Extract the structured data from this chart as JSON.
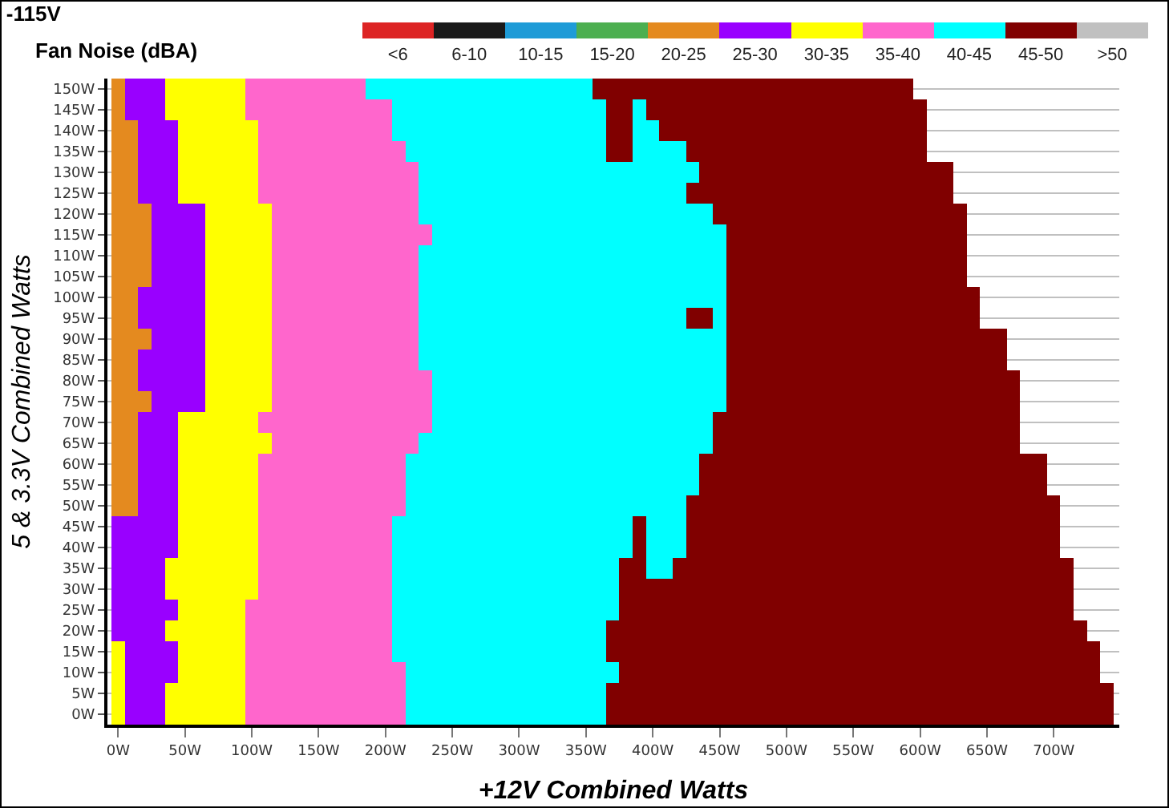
{
  "chart_data": {
    "type": "heatmap",
    "title": "-115V",
    "subtitle": "Fan Noise (dBA)",
    "xlabel": "+12V Combined Watts",
    "ylabel": "5 & 3.3V Combined Watts",
    "x": [
      0,
      10,
      20,
      30,
      40,
      50,
      60,
      70,
      80,
      90,
      100,
      110,
      120,
      130,
      140,
      150,
      160,
      170,
      180,
      190,
      200,
      210,
      220,
      230,
      240,
      250,
      260,
      270,
      280,
      290,
      300,
      310,
      320,
      330,
      340,
      350,
      360,
      370,
      380,
      390,
      400,
      410,
      420,
      430,
      440,
      450,
      460,
      470,
      480,
      490,
      500,
      510,
      520,
      530,
      540,
      550,
      560,
      570,
      580,
      590,
      600,
      610,
      620,
      630,
      640,
      650,
      660,
      670,
      680,
      690,
      700,
      710,
      720,
      730,
      740
    ],
    "y_categories": [
      "150W",
      "145W",
      "140W",
      "135W",
      "130W",
      "125W",
      "120W",
      "115W",
      "110W",
      "105W",
      "100W",
      "95W",
      "90W",
      "85W",
      "80W",
      "75W",
      "70W",
      "65W",
      "60W",
      "55W",
      "50W",
      "45W",
      "40W",
      "35W",
      "30W",
      "25W",
      "20W",
      "15W",
      "10W",
      "5W",
      "0W"
    ],
    "cells": [
      [
        22.5,
        27.5,
        27.5,
        27.5,
        32.5,
        32.5,
        32.5,
        32.5,
        32.5,
        32.5,
        37.5,
        37.5,
        37.5,
        37.5,
        37.5,
        37.5,
        37.5,
        37.5,
        37.5,
        42.5,
        42.5,
        42.5,
        42.5,
        42.5,
        42.5,
        42.5,
        42.5,
        42.5,
        42.5,
        42.5,
        42.5,
        42.5,
        42.5,
        42.5,
        42.5,
        42.5,
        47.5,
        47.5,
        47.5,
        47.5,
        47.5,
        47.5,
        47.5,
        47.5,
        47.5,
        47.5,
        47.5,
        47.5,
        47.5,
        47.5,
        47.5,
        47.5,
        47.5,
        47.5,
        47.5,
        47.5,
        47.5,
        47.5,
        47.5,
        47.5,
        null,
        null,
        null,
        null,
        null,
        null,
        null,
        null,
        null,
        null,
        null,
        null,
        null,
        null,
        null
      ],
      [
        22.5,
        27.5,
        27.5,
        27.5,
        32.5,
        32.5,
        32.5,
        32.5,
        32.5,
        32.5,
        37.5,
        37.5,
        37.5,
        37.5,
        37.5,
        37.5,
        37.5,
        37.5,
        37.5,
        37.5,
        37.5,
        42.5,
        42.5,
        42.5,
        42.5,
        42.5,
        42.5,
        42.5,
        42.5,
        42.5,
        42.5,
        42.5,
        42.5,
        42.5,
        42.5,
        42.5,
        42.5,
        47.5,
        47.5,
        42.5,
        47.5,
        47.5,
        47.5,
        47.5,
        47.5,
        47.5,
        47.5,
        47.5,
        47.5,
        47.5,
        47.5,
        47.5,
        47.5,
        47.5,
        47.5,
        47.5,
        47.5,
        47.5,
        47.5,
        47.5,
        47.5,
        null,
        null,
        null,
        null,
        null,
        null,
        null,
        null,
        null,
        null,
        null,
        null,
        null,
        null
      ],
      [
        22.5,
        22.5,
        27.5,
        27.5,
        27.5,
        32.5,
        32.5,
        32.5,
        32.5,
        32.5,
        32.5,
        37.5,
        37.5,
        37.5,
        37.5,
        37.5,
        37.5,
        37.5,
        37.5,
        37.5,
        37.5,
        42.5,
        42.5,
        42.5,
        42.5,
        42.5,
        42.5,
        42.5,
        42.5,
        42.5,
        42.5,
        42.5,
        42.5,
        42.5,
        42.5,
        42.5,
        42.5,
        47.5,
        47.5,
        42.5,
        42.5,
        47.5,
        47.5,
        47.5,
        47.5,
        47.5,
        47.5,
        47.5,
        47.5,
        47.5,
        47.5,
        47.5,
        47.5,
        47.5,
        47.5,
        47.5,
        47.5,
        47.5,
        47.5,
        47.5,
        47.5,
        null,
        null,
        null,
        null,
        null,
        null,
        null,
        null,
        null,
        null,
        null,
        null,
        null,
        null
      ],
      [
        22.5,
        22.5,
        27.5,
        27.5,
        27.5,
        32.5,
        32.5,
        32.5,
        32.5,
        32.5,
        32.5,
        37.5,
        37.5,
        37.5,
        37.5,
        37.5,
        37.5,
        37.5,
        37.5,
        37.5,
        37.5,
        37.5,
        42.5,
        42.5,
        42.5,
        42.5,
        42.5,
        42.5,
        42.5,
        42.5,
        42.5,
        42.5,
        42.5,
        42.5,
        42.5,
        42.5,
        42.5,
        47.5,
        47.5,
        42.5,
        42.5,
        42.5,
        42.5,
        47.5,
        47.5,
        47.5,
        47.5,
        47.5,
        47.5,
        47.5,
        47.5,
        47.5,
        47.5,
        47.5,
        47.5,
        47.5,
        47.5,
        47.5,
        47.5,
        47.5,
        47.5,
        null,
        null,
        null,
        null,
        null,
        null,
        null,
        null,
        null,
        null,
        null,
        null,
        null,
        null
      ],
      [
        22.5,
        22.5,
        27.5,
        27.5,
        27.5,
        32.5,
        32.5,
        32.5,
        32.5,
        32.5,
        32.5,
        37.5,
        37.5,
        37.5,
        37.5,
        37.5,
        37.5,
        37.5,
        37.5,
        37.5,
        37.5,
        37.5,
        37.5,
        42.5,
        42.5,
        42.5,
        42.5,
        42.5,
        42.5,
        42.5,
        42.5,
        42.5,
        42.5,
        42.5,
        42.5,
        42.5,
        42.5,
        42.5,
        42.5,
        42.5,
        42.5,
        42.5,
        42.5,
        42.5,
        47.5,
        47.5,
        47.5,
        47.5,
        47.5,
        47.5,
        47.5,
        47.5,
        47.5,
        47.5,
        47.5,
        47.5,
        47.5,
        47.5,
        47.5,
        47.5,
        47.5,
        47.5,
        47.5,
        null,
        null,
        null,
        null,
        null,
        null,
        null,
        null,
        null,
        null,
        null,
        null
      ],
      [
        22.5,
        22.5,
        27.5,
        27.5,
        27.5,
        32.5,
        32.5,
        32.5,
        32.5,
        32.5,
        32.5,
        37.5,
        37.5,
        37.5,
        37.5,
        37.5,
        37.5,
        37.5,
        37.5,
        37.5,
        37.5,
        37.5,
        37.5,
        42.5,
        42.5,
        42.5,
        42.5,
        42.5,
        42.5,
        42.5,
        42.5,
        42.5,
        42.5,
        42.5,
        42.5,
        42.5,
        42.5,
        42.5,
        42.5,
        42.5,
        42.5,
        42.5,
        42.5,
        47.5,
        47.5,
        47.5,
        47.5,
        47.5,
        47.5,
        47.5,
        47.5,
        47.5,
        47.5,
        47.5,
        47.5,
        47.5,
        47.5,
        47.5,
        47.5,
        47.5,
        47.5,
        47.5,
        47.5,
        null,
        null,
        null,
        null,
        null,
        null,
        null,
        null,
        null,
        null,
        null,
        null
      ],
      [
        22.5,
        22.5,
        22.5,
        27.5,
        27.5,
        27.5,
        27.5,
        32.5,
        32.5,
        32.5,
        32.5,
        32.5,
        37.5,
        37.5,
        37.5,
        37.5,
        37.5,
        37.5,
        37.5,
        37.5,
        37.5,
        37.5,
        37.5,
        42.5,
        42.5,
        42.5,
        42.5,
        42.5,
        42.5,
        42.5,
        42.5,
        42.5,
        42.5,
        42.5,
        42.5,
        42.5,
        42.5,
        42.5,
        42.5,
        42.5,
        42.5,
        42.5,
        42.5,
        42.5,
        42.5,
        47.5,
        47.5,
        47.5,
        47.5,
        47.5,
        47.5,
        47.5,
        47.5,
        47.5,
        47.5,
        47.5,
        47.5,
        47.5,
        47.5,
        47.5,
        47.5,
        47.5,
        47.5,
        47.5,
        null,
        null,
        null,
        null,
        null,
        null,
        null,
        null,
        null,
        null,
        null
      ],
      [
        22.5,
        22.5,
        22.5,
        27.5,
        27.5,
        27.5,
        27.5,
        32.5,
        32.5,
        32.5,
        32.5,
        32.5,
        37.5,
        37.5,
        37.5,
        37.5,
        37.5,
        37.5,
        37.5,
        37.5,
        37.5,
        37.5,
        37.5,
        37.5,
        42.5,
        42.5,
        42.5,
        42.5,
        42.5,
        42.5,
        42.5,
        42.5,
        42.5,
        42.5,
        42.5,
        42.5,
        42.5,
        42.5,
        42.5,
        42.5,
        42.5,
        42.5,
        42.5,
        42.5,
        42.5,
        42.5,
        47.5,
        47.5,
        47.5,
        47.5,
        47.5,
        47.5,
        47.5,
        47.5,
        47.5,
        47.5,
        47.5,
        47.5,
        47.5,
        47.5,
        47.5,
        47.5,
        47.5,
        47.5,
        null,
        null,
        null,
        null,
        null,
        null,
        null,
        null,
        null,
        null,
        null
      ],
      [
        22.5,
        22.5,
        22.5,
        27.5,
        27.5,
        27.5,
        27.5,
        32.5,
        32.5,
        32.5,
        32.5,
        32.5,
        37.5,
        37.5,
        37.5,
        37.5,
        37.5,
        37.5,
        37.5,
        37.5,
        37.5,
        37.5,
        37.5,
        42.5,
        42.5,
        42.5,
        42.5,
        42.5,
        42.5,
        42.5,
        42.5,
        42.5,
        42.5,
        42.5,
        42.5,
        42.5,
        42.5,
        42.5,
        42.5,
        42.5,
        42.5,
        42.5,
        42.5,
        42.5,
        42.5,
        42.5,
        47.5,
        47.5,
        47.5,
        47.5,
        47.5,
        47.5,
        47.5,
        47.5,
        47.5,
        47.5,
        47.5,
        47.5,
        47.5,
        47.5,
        47.5,
        47.5,
        47.5,
        47.5,
        null,
        null,
        null,
        null,
        null,
        null,
        null,
        null,
        null,
        null,
        null
      ],
      [
        22.5,
        22.5,
        22.5,
        27.5,
        27.5,
        27.5,
        27.5,
        32.5,
        32.5,
        32.5,
        32.5,
        32.5,
        37.5,
        37.5,
        37.5,
        37.5,
        37.5,
        37.5,
        37.5,
        37.5,
        37.5,
        37.5,
        37.5,
        42.5,
        42.5,
        42.5,
        42.5,
        42.5,
        42.5,
        42.5,
        42.5,
        42.5,
        42.5,
        42.5,
        42.5,
        42.5,
        42.5,
        42.5,
        42.5,
        42.5,
        42.5,
        42.5,
        42.5,
        42.5,
        42.5,
        42.5,
        47.5,
        47.5,
        47.5,
        47.5,
        47.5,
        47.5,
        47.5,
        47.5,
        47.5,
        47.5,
        47.5,
        47.5,
        47.5,
        47.5,
        47.5,
        47.5,
        47.5,
        47.5,
        null,
        null,
        null,
        null,
        null,
        null,
        null,
        null,
        null,
        null,
        null
      ],
      [
        22.5,
        22.5,
        27.5,
        27.5,
        27.5,
        27.5,
        27.5,
        32.5,
        32.5,
        32.5,
        32.5,
        32.5,
        37.5,
        37.5,
        37.5,
        37.5,
        37.5,
        37.5,
        37.5,
        37.5,
        37.5,
        37.5,
        37.5,
        42.5,
        42.5,
        42.5,
        42.5,
        42.5,
        42.5,
        42.5,
        42.5,
        42.5,
        42.5,
        42.5,
        42.5,
        42.5,
        42.5,
        42.5,
        42.5,
        42.5,
        42.5,
        42.5,
        42.5,
        42.5,
        42.5,
        42.5,
        47.5,
        47.5,
        47.5,
        47.5,
        47.5,
        47.5,
        47.5,
        47.5,
        47.5,
        47.5,
        47.5,
        47.5,
        47.5,
        47.5,
        47.5,
        47.5,
        47.5,
        47.5,
        47.5,
        null,
        null,
        null,
        null,
        null,
        null,
        null,
        null,
        null,
        null
      ],
      [
        22.5,
        22.5,
        27.5,
        27.5,
        27.5,
        27.5,
        27.5,
        32.5,
        32.5,
        32.5,
        32.5,
        32.5,
        37.5,
        37.5,
        37.5,
        37.5,
        37.5,
        37.5,
        37.5,
        37.5,
        37.5,
        37.5,
        37.5,
        42.5,
        42.5,
        42.5,
        42.5,
        42.5,
        42.5,
        42.5,
        42.5,
        42.5,
        42.5,
        42.5,
        42.5,
        42.5,
        42.5,
        42.5,
        42.5,
        42.5,
        42.5,
        42.5,
        42.5,
        47.5,
        47.5,
        42.5,
        47.5,
        47.5,
        47.5,
        47.5,
        47.5,
        47.5,
        47.5,
        47.5,
        47.5,
        47.5,
        47.5,
        47.5,
        47.5,
        47.5,
        47.5,
        47.5,
        47.5,
        47.5,
        47.5,
        null,
        null,
        null,
        null,
        null,
        null,
        null,
        null,
        null,
        null
      ],
      [
        22.5,
        22.5,
        22.5,
        27.5,
        27.5,
        27.5,
        27.5,
        32.5,
        32.5,
        32.5,
        32.5,
        32.5,
        37.5,
        37.5,
        37.5,
        37.5,
        37.5,
        37.5,
        37.5,
        37.5,
        37.5,
        37.5,
        37.5,
        42.5,
        42.5,
        42.5,
        42.5,
        42.5,
        42.5,
        42.5,
        42.5,
        42.5,
        42.5,
        42.5,
        42.5,
        42.5,
        42.5,
        42.5,
        42.5,
        42.5,
        42.5,
        42.5,
        42.5,
        42.5,
        42.5,
        42.5,
        47.5,
        47.5,
        47.5,
        47.5,
        47.5,
        47.5,
        47.5,
        47.5,
        47.5,
        47.5,
        47.5,
        47.5,
        47.5,
        47.5,
        47.5,
        47.5,
        47.5,
        47.5,
        47.5,
        47.5,
        47.5,
        null,
        null,
        null,
        null,
        null,
        null,
        null,
        null
      ],
      [
        22.5,
        22.5,
        27.5,
        27.5,
        27.5,
        27.5,
        27.5,
        32.5,
        32.5,
        32.5,
        32.5,
        32.5,
        37.5,
        37.5,
        37.5,
        37.5,
        37.5,
        37.5,
        37.5,
        37.5,
        37.5,
        37.5,
        37.5,
        42.5,
        42.5,
        42.5,
        42.5,
        42.5,
        42.5,
        42.5,
        42.5,
        42.5,
        42.5,
        42.5,
        42.5,
        42.5,
        42.5,
        42.5,
        42.5,
        42.5,
        42.5,
        42.5,
        42.5,
        42.5,
        42.5,
        42.5,
        47.5,
        47.5,
        47.5,
        47.5,
        47.5,
        47.5,
        47.5,
        47.5,
        47.5,
        47.5,
        47.5,
        47.5,
        47.5,
        47.5,
        47.5,
        47.5,
        47.5,
        47.5,
        47.5,
        47.5,
        47.5,
        null,
        null,
        null,
        null,
        null,
        null,
        null,
        null
      ],
      [
        22.5,
        22.5,
        27.5,
        27.5,
        27.5,
        27.5,
        27.5,
        32.5,
        32.5,
        32.5,
        32.5,
        32.5,
        37.5,
        37.5,
        37.5,
        37.5,
        37.5,
        37.5,
        37.5,
        37.5,
        37.5,
        37.5,
        37.5,
        37.5,
        42.5,
        42.5,
        42.5,
        42.5,
        42.5,
        42.5,
        42.5,
        42.5,
        42.5,
        42.5,
        42.5,
        42.5,
        42.5,
        42.5,
        42.5,
        42.5,
        42.5,
        42.5,
        42.5,
        42.5,
        42.5,
        42.5,
        47.5,
        47.5,
        47.5,
        47.5,
        47.5,
        47.5,
        47.5,
        47.5,
        47.5,
        47.5,
        47.5,
        47.5,
        47.5,
        47.5,
        47.5,
        47.5,
        47.5,
        47.5,
        47.5,
        47.5,
        47.5,
        47.5,
        null,
        null,
        null,
        null,
        null,
        null,
        null
      ],
      [
        22.5,
        22.5,
        22.5,
        27.5,
        27.5,
        27.5,
        27.5,
        32.5,
        32.5,
        32.5,
        32.5,
        32.5,
        37.5,
        37.5,
        37.5,
        37.5,
        37.5,
        37.5,
        37.5,
        37.5,
        37.5,
        37.5,
        37.5,
        37.5,
        42.5,
        42.5,
        42.5,
        42.5,
        42.5,
        42.5,
        42.5,
        42.5,
        42.5,
        42.5,
        42.5,
        42.5,
        42.5,
        42.5,
        42.5,
        42.5,
        42.5,
        42.5,
        42.5,
        42.5,
        42.5,
        42.5,
        47.5,
        47.5,
        47.5,
        47.5,
        47.5,
        47.5,
        47.5,
        47.5,
        47.5,
        47.5,
        47.5,
        47.5,
        47.5,
        47.5,
        47.5,
        47.5,
        47.5,
        47.5,
        47.5,
        47.5,
        47.5,
        47.5,
        null,
        null,
        null,
        null,
        null,
        null,
        null
      ],
      [
        22.5,
        22.5,
        27.5,
        27.5,
        27.5,
        32.5,
        32.5,
        32.5,
        32.5,
        32.5,
        32.5,
        37.5,
        37.5,
        37.5,
        37.5,
        37.5,
        37.5,
        37.5,
        37.5,
        37.5,
        37.5,
        37.5,
        37.5,
        37.5,
        42.5,
        42.5,
        42.5,
        42.5,
        42.5,
        42.5,
        42.5,
        42.5,
        42.5,
        42.5,
        42.5,
        42.5,
        42.5,
        42.5,
        42.5,
        42.5,
        42.5,
        42.5,
        42.5,
        42.5,
        42.5,
        47.5,
        47.5,
        47.5,
        47.5,
        47.5,
        47.5,
        47.5,
        47.5,
        47.5,
        47.5,
        47.5,
        47.5,
        47.5,
        47.5,
        47.5,
        47.5,
        47.5,
        47.5,
        47.5,
        47.5,
        47.5,
        47.5,
        47.5,
        null,
        null,
        null,
        null,
        null,
        null,
        null
      ],
      [
        22.5,
        22.5,
        27.5,
        27.5,
        27.5,
        32.5,
        32.5,
        32.5,
        32.5,
        32.5,
        32.5,
        32.5,
        37.5,
        37.5,
        37.5,
        37.5,
        37.5,
        37.5,
        37.5,
        37.5,
        37.5,
        37.5,
        37.5,
        42.5,
        42.5,
        42.5,
        42.5,
        42.5,
        42.5,
        42.5,
        42.5,
        42.5,
        42.5,
        42.5,
        42.5,
        42.5,
        42.5,
        42.5,
        42.5,
        42.5,
        42.5,
        42.5,
        42.5,
        42.5,
        42.5,
        47.5,
        47.5,
        47.5,
        47.5,
        47.5,
        47.5,
        47.5,
        47.5,
        47.5,
        47.5,
        47.5,
        47.5,
        47.5,
        47.5,
        47.5,
        47.5,
        47.5,
        47.5,
        47.5,
        47.5,
        47.5,
        47.5,
        47.5,
        null,
        null,
        null,
        null,
        null,
        null,
        null
      ],
      [
        22.5,
        22.5,
        27.5,
        27.5,
        27.5,
        32.5,
        32.5,
        32.5,
        32.5,
        32.5,
        32.5,
        37.5,
        37.5,
        37.5,
        37.5,
        37.5,
        37.5,
        37.5,
        37.5,
        37.5,
        37.5,
        37.5,
        42.5,
        42.5,
        42.5,
        42.5,
        42.5,
        42.5,
        42.5,
        42.5,
        42.5,
        42.5,
        42.5,
        42.5,
        42.5,
        42.5,
        42.5,
        42.5,
        42.5,
        42.5,
        42.5,
        42.5,
        42.5,
        42.5,
        47.5,
        47.5,
        47.5,
        47.5,
        47.5,
        47.5,
        47.5,
        47.5,
        47.5,
        47.5,
        47.5,
        47.5,
        47.5,
        47.5,
        47.5,
        47.5,
        47.5,
        47.5,
        47.5,
        47.5,
        47.5,
        47.5,
        47.5,
        47.5,
        47.5,
        47.5,
        null,
        null,
        null,
        null,
        null
      ],
      [
        22.5,
        22.5,
        27.5,
        27.5,
        27.5,
        32.5,
        32.5,
        32.5,
        32.5,
        32.5,
        32.5,
        37.5,
        37.5,
        37.5,
        37.5,
        37.5,
        37.5,
        37.5,
        37.5,
        37.5,
        37.5,
        37.5,
        42.5,
        42.5,
        42.5,
        42.5,
        42.5,
        42.5,
        42.5,
        42.5,
        42.5,
        42.5,
        42.5,
        42.5,
        42.5,
        42.5,
        42.5,
        42.5,
        42.5,
        42.5,
        42.5,
        42.5,
        42.5,
        42.5,
        47.5,
        47.5,
        47.5,
        47.5,
        47.5,
        47.5,
        47.5,
        47.5,
        47.5,
        47.5,
        47.5,
        47.5,
        47.5,
        47.5,
        47.5,
        47.5,
        47.5,
        47.5,
        47.5,
        47.5,
        47.5,
        47.5,
        47.5,
        47.5,
        47.5,
        47.5,
        null,
        null,
        null,
        null,
        null
      ],
      [
        22.5,
        22.5,
        27.5,
        27.5,
        27.5,
        32.5,
        32.5,
        32.5,
        32.5,
        32.5,
        32.5,
        37.5,
        37.5,
        37.5,
        37.5,
        37.5,
        37.5,
        37.5,
        37.5,
        37.5,
        37.5,
        37.5,
        42.5,
        42.5,
        42.5,
        42.5,
        42.5,
        42.5,
        42.5,
        42.5,
        42.5,
        42.5,
        42.5,
        42.5,
        42.5,
        42.5,
        42.5,
        42.5,
        42.5,
        42.5,
        42.5,
        42.5,
        42.5,
        47.5,
        47.5,
        47.5,
        47.5,
        47.5,
        47.5,
        47.5,
        47.5,
        47.5,
        47.5,
        47.5,
        47.5,
        47.5,
        47.5,
        47.5,
        47.5,
        47.5,
        47.5,
        47.5,
        47.5,
        47.5,
        47.5,
        47.5,
        47.5,
        47.5,
        47.5,
        47.5,
        47.5,
        null,
        null,
        null,
        null
      ],
      [
        27.5,
        27.5,
        27.5,
        27.5,
        27.5,
        32.5,
        32.5,
        32.5,
        32.5,
        32.5,
        32.5,
        37.5,
        37.5,
        37.5,
        37.5,
        37.5,
        37.5,
        37.5,
        37.5,
        37.5,
        37.5,
        42.5,
        42.5,
        42.5,
        42.5,
        42.5,
        42.5,
        42.5,
        42.5,
        42.5,
        42.5,
        42.5,
        42.5,
        42.5,
        42.5,
        42.5,
        42.5,
        42.5,
        42.5,
        47.5,
        42.5,
        42.5,
        42.5,
        47.5,
        47.5,
        47.5,
        47.5,
        47.5,
        47.5,
        47.5,
        47.5,
        47.5,
        47.5,
        47.5,
        47.5,
        47.5,
        47.5,
        47.5,
        47.5,
        47.5,
        47.5,
        47.5,
        47.5,
        47.5,
        47.5,
        47.5,
        47.5,
        47.5,
        47.5,
        47.5,
        47.5,
        null,
        null,
        null,
        null
      ],
      [
        27.5,
        27.5,
        27.5,
        27.5,
        27.5,
        32.5,
        32.5,
        32.5,
        32.5,
        32.5,
        32.5,
        37.5,
        37.5,
        37.5,
        37.5,
        37.5,
        37.5,
        37.5,
        37.5,
        37.5,
        37.5,
        42.5,
        42.5,
        42.5,
        42.5,
        42.5,
        42.5,
        42.5,
        42.5,
        42.5,
        42.5,
        42.5,
        42.5,
        42.5,
        42.5,
        42.5,
        42.5,
        42.5,
        42.5,
        47.5,
        42.5,
        42.5,
        42.5,
        47.5,
        47.5,
        47.5,
        47.5,
        47.5,
        47.5,
        47.5,
        47.5,
        47.5,
        47.5,
        47.5,
        47.5,
        47.5,
        47.5,
        47.5,
        47.5,
        47.5,
        47.5,
        47.5,
        47.5,
        47.5,
        47.5,
        47.5,
        47.5,
        47.5,
        47.5,
        47.5,
        47.5,
        null,
        null,
        null,
        null
      ],
      [
        27.5,
        27.5,
        27.5,
        27.5,
        32.5,
        32.5,
        32.5,
        32.5,
        32.5,
        32.5,
        32.5,
        37.5,
        37.5,
        37.5,
        37.5,
        37.5,
        37.5,
        37.5,
        37.5,
        37.5,
        37.5,
        42.5,
        42.5,
        42.5,
        42.5,
        42.5,
        42.5,
        42.5,
        42.5,
        42.5,
        42.5,
        42.5,
        42.5,
        42.5,
        42.5,
        42.5,
        42.5,
        42.5,
        47.5,
        47.5,
        42.5,
        42.5,
        47.5,
        47.5,
        47.5,
        47.5,
        47.5,
        47.5,
        47.5,
        47.5,
        47.5,
        47.5,
        47.5,
        47.5,
        47.5,
        47.5,
        47.5,
        47.5,
        47.5,
        47.5,
        47.5,
        47.5,
        47.5,
        47.5,
        47.5,
        47.5,
        47.5,
        47.5,
        47.5,
        47.5,
        47.5,
        47.5,
        null,
        null,
        null
      ],
      [
        27.5,
        27.5,
        27.5,
        27.5,
        32.5,
        32.5,
        32.5,
        32.5,
        32.5,
        32.5,
        32.5,
        37.5,
        37.5,
        37.5,
        37.5,
        37.5,
        37.5,
        37.5,
        37.5,
        37.5,
        37.5,
        42.5,
        42.5,
        42.5,
        42.5,
        42.5,
        42.5,
        42.5,
        42.5,
        42.5,
        42.5,
        42.5,
        42.5,
        42.5,
        42.5,
        42.5,
        42.5,
        42.5,
        47.5,
        47.5,
        47.5,
        47.5,
        47.5,
        47.5,
        47.5,
        47.5,
        47.5,
        47.5,
        47.5,
        47.5,
        47.5,
        47.5,
        47.5,
        47.5,
        47.5,
        47.5,
        47.5,
        47.5,
        47.5,
        47.5,
        47.5,
        47.5,
        47.5,
        47.5,
        47.5,
        47.5,
        47.5,
        47.5,
        47.5,
        47.5,
        47.5,
        47.5,
        null,
        null,
        null
      ],
      [
        27.5,
        27.5,
        27.5,
        27.5,
        27.5,
        32.5,
        32.5,
        32.5,
        32.5,
        32.5,
        37.5,
        37.5,
        37.5,
        37.5,
        37.5,
        37.5,
        37.5,
        37.5,
        37.5,
        37.5,
        37.5,
        42.5,
        42.5,
        42.5,
        42.5,
        42.5,
        42.5,
        42.5,
        42.5,
        42.5,
        42.5,
        42.5,
        42.5,
        42.5,
        42.5,
        42.5,
        42.5,
        42.5,
        47.5,
        47.5,
        47.5,
        47.5,
        47.5,
        47.5,
        47.5,
        47.5,
        47.5,
        47.5,
        47.5,
        47.5,
        47.5,
        47.5,
        47.5,
        47.5,
        47.5,
        47.5,
        47.5,
        47.5,
        47.5,
        47.5,
        47.5,
        47.5,
        47.5,
        47.5,
        47.5,
        47.5,
        47.5,
        47.5,
        47.5,
        47.5,
        47.5,
        47.5,
        null,
        null,
        null
      ],
      [
        27.5,
        27.5,
        27.5,
        27.5,
        32.5,
        32.5,
        32.5,
        32.5,
        32.5,
        32.5,
        37.5,
        37.5,
        37.5,
        37.5,
        37.5,
        37.5,
        37.5,
        37.5,
        37.5,
        37.5,
        37.5,
        42.5,
        42.5,
        42.5,
        42.5,
        42.5,
        42.5,
        42.5,
        42.5,
        42.5,
        42.5,
        42.5,
        42.5,
        42.5,
        42.5,
        42.5,
        42.5,
        47.5,
        47.5,
        47.5,
        47.5,
        47.5,
        47.5,
        47.5,
        47.5,
        47.5,
        47.5,
        47.5,
        47.5,
        47.5,
        47.5,
        47.5,
        47.5,
        47.5,
        47.5,
        47.5,
        47.5,
        47.5,
        47.5,
        47.5,
        47.5,
        47.5,
        47.5,
        47.5,
        47.5,
        47.5,
        47.5,
        47.5,
        47.5,
        47.5,
        47.5,
        47.5,
        47.5,
        null,
        null
      ],
      [
        32.5,
        27.5,
        27.5,
        27.5,
        27.5,
        32.5,
        32.5,
        32.5,
        32.5,
        32.5,
        37.5,
        37.5,
        37.5,
        37.5,
        37.5,
        37.5,
        37.5,
        37.5,
        37.5,
        37.5,
        37.5,
        42.5,
        42.5,
        42.5,
        42.5,
        42.5,
        42.5,
        42.5,
        42.5,
        42.5,
        42.5,
        42.5,
        42.5,
        42.5,
        42.5,
        42.5,
        42.5,
        47.5,
        47.5,
        47.5,
        47.5,
        47.5,
        47.5,
        47.5,
        47.5,
        47.5,
        47.5,
        47.5,
        47.5,
        47.5,
        47.5,
        47.5,
        47.5,
        47.5,
        47.5,
        47.5,
        47.5,
        47.5,
        47.5,
        47.5,
        47.5,
        47.5,
        47.5,
        47.5,
        47.5,
        47.5,
        47.5,
        47.5,
        47.5,
        47.5,
        47.5,
        47.5,
        47.5,
        47.5,
        null
      ],
      [
        32.5,
        27.5,
        27.5,
        27.5,
        27.5,
        32.5,
        32.5,
        32.5,
        32.5,
        32.5,
        37.5,
        37.5,
        37.5,
        37.5,
        37.5,
        37.5,
        37.5,
        37.5,
        37.5,
        37.5,
        37.5,
        37.5,
        42.5,
        42.5,
        42.5,
        42.5,
        42.5,
        42.5,
        42.5,
        42.5,
        42.5,
        42.5,
        42.5,
        42.5,
        42.5,
        42.5,
        42.5,
        42.5,
        47.5,
        47.5,
        47.5,
        47.5,
        47.5,
        47.5,
        47.5,
        47.5,
        47.5,
        47.5,
        47.5,
        47.5,
        47.5,
        47.5,
        47.5,
        47.5,
        47.5,
        47.5,
        47.5,
        47.5,
        47.5,
        47.5,
        47.5,
        47.5,
        47.5,
        47.5,
        47.5,
        47.5,
        47.5,
        47.5,
        47.5,
        47.5,
        47.5,
        47.5,
        47.5,
        47.5,
        null
      ],
      [
        32.5,
        27.5,
        27.5,
        27.5,
        32.5,
        32.5,
        32.5,
        32.5,
        32.5,
        32.5,
        37.5,
        37.5,
        37.5,
        37.5,
        37.5,
        37.5,
        37.5,
        37.5,
        37.5,
        37.5,
        37.5,
        37.5,
        42.5,
        42.5,
        42.5,
        42.5,
        42.5,
        42.5,
        42.5,
        42.5,
        42.5,
        42.5,
        42.5,
        42.5,
        42.5,
        42.5,
        42.5,
        47.5,
        47.5,
        47.5,
        47.5,
        47.5,
        47.5,
        47.5,
        47.5,
        47.5,
        47.5,
        47.5,
        47.5,
        47.5,
        47.5,
        47.5,
        47.5,
        47.5,
        47.5,
        47.5,
        47.5,
        47.5,
        47.5,
        47.5,
        47.5,
        47.5,
        47.5,
        47.5,
        47.5,
        47.5,
        47.5,
        47.5,
        47.5,
        47.5,
        47.5,
        47.5,
        47.5,
        47.5,
        47.5
      ],
      [
        32.5,
        27.5,
        27.5,
        27.5,
        32.5,
        32.5,
        32.5,
        32.5,
        32.5,
        32.5,
        37.5,
        37.5,
        37.5,
        37.5,
        37.5,
        37.5,
        37.5,
        37.5,
        37.5,
        37.5,
        37.5,
        37.5,
        42.5,
        42.5,
        42.5,
        42.5,
        42.5,
        42.5,
        42.5,
        42.5,
        42.5,
        42.5,
        42.5,
        42.5,
        42.5,
        42.5,
        42.5,
        47.5,
        47.5,
        47.5,
        47.5,
        47.5,
        47.5,
        47.5,
        47.5,
        47.5,
        47.5,
        47.5,
        47.5,
        47.5,
        47.5,
        47.5,
        47.5,
        47.5,
        47.5,
        47.5,
        47.5,
        47.5,
        47.5,
        47.5,
        47.5,
        47.5,
        47.5,
        47.5,
        47.5,
        47.5,
        47.5,
        47.5,
        47.5,
        47.5,
        47.5,
        47.5,
        47.5,
        47.5,
        47.5
      ]
    ],
    "xlim": [
      -8,
      749
    ],
    "xticks": [
      {
        "value": 0,
        "label": "0W"
      },
      {
        "value": 50,
        "label": "50W"
      },
      {
        "value": 100,
        "label": "100W"
      },
      {
        "value": 150,
        "label": "150W"
      },
      {
        "value": 200,
        "label": "200W"
      },
      {
        "value": 250,
        "label": "250W"
      },
      {
        "value": 300,
        "label": "300W"
      },
      {
        "value": 350,
        "label": "350W"
      },
      {
        "value": 400,
        "label": "400W"
      },
      {
        "value": 450,
        "label": "450W"
      },
      {
        "value": 500,
        "label": "500W"
      },
      {
        "value": 550,
        "label": "550W"
      },
      {
        "value": 600,
        "label": "600W"
      },
      {
        "value": 650,
        "label": "650W"
      },
      {
        "value": 700,
        "label": "700W"
      }
    ],
    "clim": [
      0,
      55
    ],
    "cticks": [
      {
        "value": 2.5,
        "label": "<6"
      },
      {
        "value": 7.5,
        "label": "6-10"
      },
      {
        "value": 12.5,
        "label": "10-15"
      },
      {
        "value": 17.5,
        "label": "15-20"
      },
      {
        "value": 22.5,
        "label": "20-25"
      },
      {
        "value": 27.5,
        "label": "25-30"
      },
      {
        "value": 32.5,
        "label": "30-35"
      },
      {
        "value": 37.5,
        "label": "35-40"
      },
      {
        "value": 42.5,
        "label": "40-45"
      },
      {
        "value": 47.5,
        "label": "45-50"
      },
      {
        "value": 52.5,
        "label": ">50"
      }
    ],
    "colors": [
      "#dd2424",
      "#1a1a1a",
      "#1e9bd7",
      "#4caf50",
      "#e48a1f",
      "#9900ff",
      "#ffff00",
      "#ff66cc",
      "#00ffff",
      "#800000",
      "#c0c0c0"
    ],
    "grid": "y"
  }
}
